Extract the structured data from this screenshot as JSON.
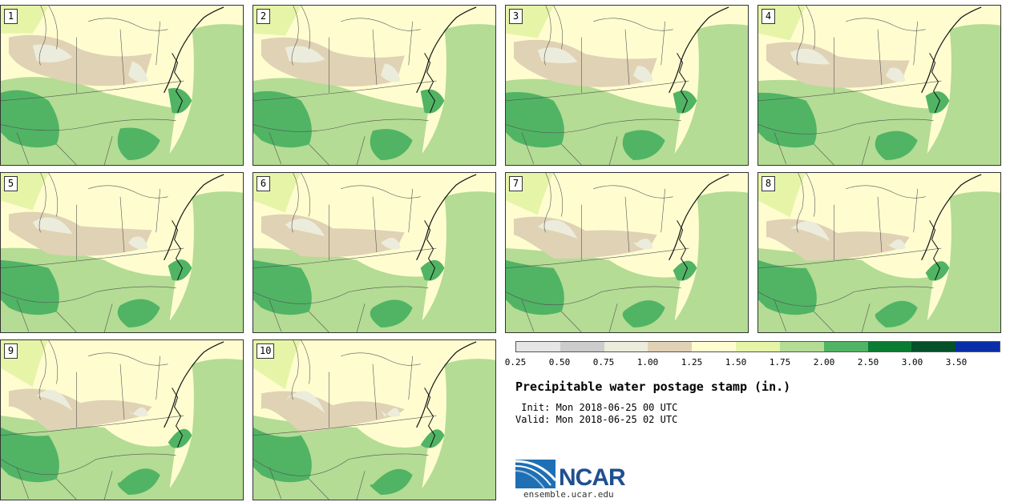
{
  "panels": [
    "1",
    "2",
    "3",
    "4",
    "5",
    "6",
    "7",
    "8",
    "9",
    "10"
  ],
  "colorbar": {
    "colors": [
      "#e6e6e6",
      "#cccccc",
      "#ececdc",
      "#e0d2b4",
      "#fffdd0",
      "#e6f4a8",
      "#b4dc94",
      "#50b464",
      "#0a7d32",
      "#06502a",
      "#0a2ea8"
    ],
    "ticks": [
      "0.25",
      "0.50",
      "0.75",
      "1.00",
      "1.25",
      "1.50",
      "1.75",
      "2.00",
      "2.50",
      "3.00",
      "3.50"
    ]
  },
  "title": "Precipitable water postage stamp (in.)",
  "init": " Init: Mon 2018-06-25 00 UTC",
  "valid": "Valid: Mon 2018-06-25 02 UTC",
  "logo": {
    "word": "NCAR",
    "site": "ensemble.ucar.edu"
  }
}
